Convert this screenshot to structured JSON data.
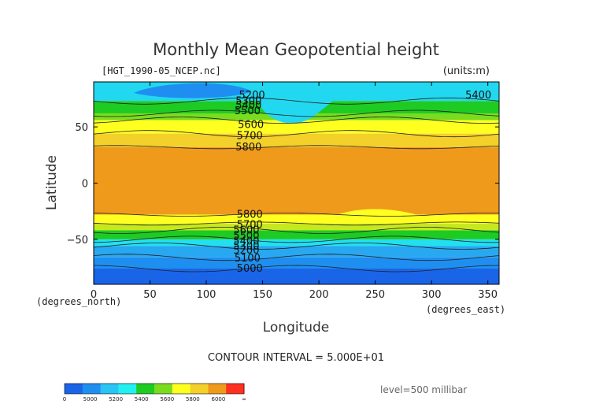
{
  "chart_data": {
    "type": "heatmap",
    "title": "Monthly Mean Geopotential height",
    "subtitle": "[HGT_1990-05_NCEP.nc]",
    "units": "(units:m)",
    "xlabel": "Longitude",
    "ylabel": "Latitude",
    "x_unit": "(degrees_east)",
    "y_unit": "(degrees_north)",
    "xlim": [
      0,
      360
    ],
    "ylim": [
      -90,
      90
    ],
    "x_ticks": [
      "0",
      "50",
      "100",
      "150",
      "200",
      "250",
      "300",
      "350"
    ],
    "y_ticks": [
      "50",
      "0",
      "−50"
    ],
    "contour_interval": "CONTOUR INTERVAL = 5.000E+01",
    "level": "level=500 millibar",
    "colorbar": {
      "labels": [
        "0",
        "5000",
        "5200",
        "5400",
        "5600",
        "5800",
        "6000",
        "∞"
      ],
      "colors": [
        "#1a64e8",
        "#1e8ff0",
        "#28c4f4",
        "#22f0f0",
        "#1ecb22",
        "#7adc1e",
        "#ffff20",
        "#f4d02a",
        "#f09a1c",
        "#ff3020"
      ]
    },
    "bands": [
      {
        "from_lat": 90,
        "to_lat": 73,
        "value_range": [
          5200,
          5400
        ],
        "color": "#22d8f0"
      },
      {
        "from_lat": 73,
        "to_lat": 62,
        "value_range": [
          5400,
          5500
        ],
        "color": "#1ecb22"
      },
      {
        "from_lat": 62,
        "to_lat": 56,
        "value_range": [
          5500,
          5600
        ],
        "color": "#7adc1e"
      },
      {
        "from_lat": 56,
        "to_lat": 44,
        "value_range": [
          5600,
          5700
        ],
        "color": "#ffff20"
      },
      {
        "from_lat": 44,
        "to_lat": 32,
        "value_range": [
          5700,
          5800
        ],
        "color": "#f4d02a"
      },
      {
        "from_lat": 32,
        "to_lat": -28,
        "value_range": [
          5800,
          5900
        ],
        "color": "#f09a1c"
      },
      {
        "from_lat": -28,
        "to_lat": -36,
        "value_range": [
          5700,
          5800
        ],
        "color": "#ffff20"
      },
      {
        "from_lat": -36,
        "to_lat": -42,
        "value_range": [
          5600,
          5700
        ],
        "color": "#c8e81e"
      },
      {
        "from_lat": -42,
        "to_lat": -50,
        "value_range": [
          5500,
          5600
        ],
        "color": "#1ecb22"
      },
      {
        "from_lat": -50,
        "to_lat": -56,
        "value_range": [
          5400,
          5500
        ],
        "color": "#22e0f0"
      },
      {
        "from_lat": -56,
        "to_lat": -66,
        "value_range": [
          5200,
          5400
        ],
        "color": "#28a8f0"
      },
      {
        "from_lat": -66,
        "to_lat": -76,
        "value_range": [
          5000,
          5200
        ],
        "color": "#1e8ff0"
      },
      {
        "from_lat": -76,
        "to_lat": -90,
        "value_range": [
          0,
          5000
        ],
        "color": "#1a64e8"
      }
    ],
    "contour_labels": [
      {
        "text": "5200",
        "x": 129,
        "y": 78
      },
      {
        "text": "5300",
        "x": 126,
        "y": 73
      },
      {
        "text": "5400",
        "x": 126,
        "y": 69
      },
      {
        "text": "5500",
        "x": 125,
        "y": 64
      },
      {
        "text": "5600",
        "x": 128,
        "y": 52
      },
      {
        "text": "5700",
        "x": 127,
        "y": 42
      },
      {
        "text": "5800",
        "x": 126,
        "y": 32
      },
      {
        "text": "5400",
        "x": 330,
        "y": 78
      },
      {
        "text": "5800",
        "x": 127,
        "y": -28
      },
      {
        "text": "5700",
        "x": 127,
        "y": -37
      },
      {
        "text": "5600",
        "x": 124,
        "y": -42
      },
      {
        "text": "5500",
        "x": 124,
        "y": -47
      },
      {
        "text": "5400",
        "x": 124,
        "y": -52
      },
      {
        "text": "5300",
        "x": 124,
        "y": -56
      },
      {
        "text": "5200",
        "x": 124,
        "y": -60
      },
      {
        "text": "5100",
        "x": 125,
        "y": -67
      },
      {
        "text": "5000",
        "x": 127,
        "y": -76
      }
    ]
  }
}
